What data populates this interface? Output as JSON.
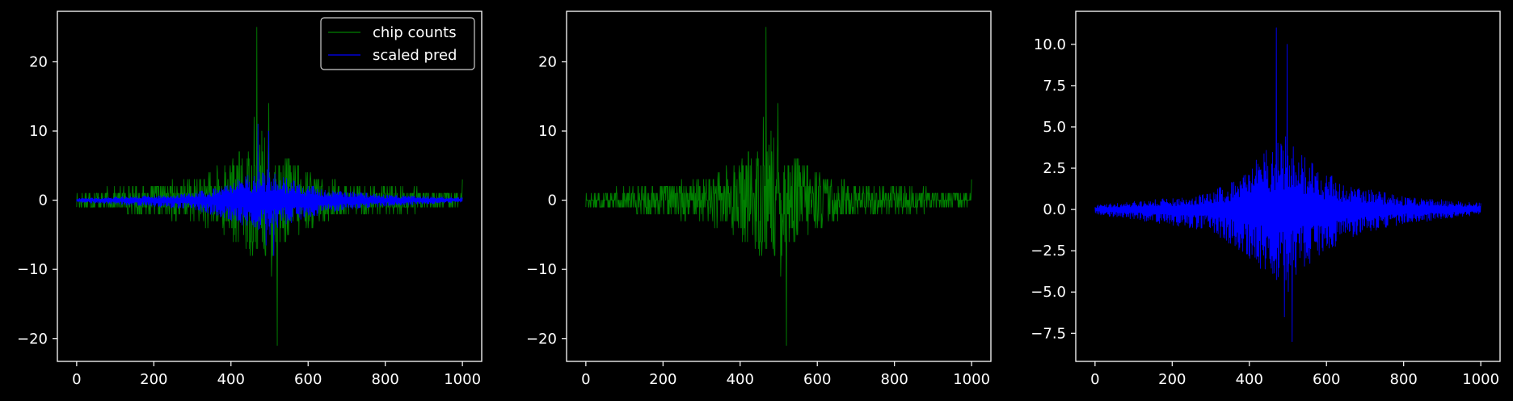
{
  "colors": {
    "background": "#000000",
    "axes": "#ffffff",
    "text": "#ffffff",
    "counts": "#008000",
    "pred": "#0000ff"
  },
  "chart_data": [
    {
      "type": "line",
      "title": "",
      "xlabel": "",
      "ylabel": "",
      "xlim": [
        -50,
        1050
      ],
      "ylim": [
        -23.3,
        27.3
      ],
      "xticks": [
        0,
        200,
        400,
        600,
        800,
        1000
      ],
      "yticks": [
        -20,
        -10,
        0,
        10,
        20
      ],
      "xtick_labels": [
        "0",
        "200",
        "400",
        "600",
        "800",
        "1000"
      ],
      "ytick_labels": [
        "−20",
        "−10",
        "0",
        "10",
        "20"
      ],
      "grid": false,
      "legend": {
        "position": "top-right",
        "entries": [
          "chip counts",
          "scaled pred"
        ]
      },
      "series": [
        {
          "name": "chip counts",
          "color": "#008000",
          "kind": "signed-counts",
          "x_range": [
            0,
            1000
          ],
          "peaks": [
            {
              "x": 467,
              "y": 25
            },
            {
              "x": 498,
              "y": 14
            },
            {
              "x": 520,
              "y": -21
            },
            {
              "x": 505,
              "y": -11
            },
            {
              "x": 460,
              "y": 12
            },
            {
              "x": 480,
              "y": 10
            }
          ],
          "envelope": [
            [
              0,
              1
            ],
            [
              150,
              2
            ],
            [
              300,
              3
            ],
            [
              400,
              6
            ],
            [
              450,
              8
            ],
            [
              500,
              9
            ],
            [
              550,
              6
            ],
            [
              650,
              3
            ],
            [
              800,
              2
            ],
            [
              1000,
              1
            ]
          ],
          "end_value": 3
        },
        {
          "name": "scaled pred",
          "color": "#0000ff",
          "kind": "two-sided-prediction",
          "x_range": [
            0,
            1000
          ],
          "upper_peaks": [
            {
              "x": 470,
              "y": 11
            },
            {
              "x": 498,
              "y": 10
            }
          ],
          "lower_peaks": [
            {
              "x": 510,
              "y": -8
            },
            {
              "x": 490,
              "y": -6.5
            }
          ],
          "upper_envelope": [
            [
              0,
              0.3
            ],
            [
              150,
              0.6
            ],
            [
              300,
              1
            ],
            [
              400,
              2.5
            ],
            [
              450,
              4
            ],
            [
              500,
              4.5
            ],
            [
              550,
              3
            ],
            [
              650,
              1.5
            ],
            [
              800,
              0.8
            ],
            [
              1000,
              0.4
            ]
          ],
          "lower_envelope": [
            [
              0,
              -0.3
            ],
            [
              150,
              -0.8
            ],
            [
              300,
              -1.3
            ],
            [
              400,
              -3
            ],
            [
              450,
              -4
            ],
            [
              500,
              -5
            ],
            [
              550,
              -3.5
            ],
            [
              650,
              -1.8
            ],
            [
              800,
              -0.9
            ],
            [
              1000,
              -0.3
            ]
          ]
        }
      ]
    },
    {
      "type": "line",
      "title": "",
      "xlabel": "",
      "ylabel": "",
      "xlim": [
        -50,
        1050
      ],
      "ylim": [
        -23.3,
        27.3
      ],
      "xticks": [
        0,
        200,
        400,
        600,
        800,
        1000
      ],
      "yticks": [
        -20,
        -10,
        0,
        10,
        20
      ],
      "xtick_labels": [
        "0",
        "200",
        "400",
        "600",
        "800",
        "1000"
      ],
      "ytick_labels": [
        "−20",
        "−10",
        "0",
        "10",
        "20"
      ],
      "grid": false,
      "series": [
        {
          "name": "chip counts",
          "color": "#008000",
          "kind": "signed-counts",
          "x_range": [
            0,
            1000
          ],
          "peaks": [
            {
              "x": 467,
              "y": 25
            },
            {
              "x": 498,
              "y": 14
            },
            {
              "x": 520,
              "y": -21
            },
            {
              "x": 505,
              "y": -11
            },
            {
              "x": 460,
              "y": 12
            },
            {
              "x": 480,
              "y": 10
            }
          ],
          "envelope": [
            [
              0,
              1
            ],
            [
              150,
              2
            ],
            [
              300,
              3
            ],
            [
              400,
              6
            ],
            [
              450,
              8
            ],
            [
              500,
              9
            ],
            [
              550,
              6
            ],
            [
              650,
              3
            ],
            [
              800,
              2
            ],
            [
              1000,
              1
            ]
          ],
          "end_value": 3
        }
      ]
    },
    {
      "type": "line",
      "title": "",
      "xlabel": "",
      "ylabel": "",
      "xlim": [
        -50,
        1050
      ],
      "ylim": [
        -9.2,
        12.0
      ],
      "xticks": [
        0,
        200,
        400,
        600,
        800,
        1000
      ],
      "yticks": [
        -7.5,
        -5,
        -2.5,
        0,
        2.5,
        5,
        7.5,
        10
      ],
      "xtick_labels": [
        "0",
        "200",
        "400",
        "600",
        "800",
        "1000"
      ],
      "ytick_labels": [
        "−7.5",
        "−5.0",
        "−2.5",
        "0.0",
        "2.5",
        "5.0",
        "7.5",
        "10.0"
      ],
      "grid": false,
      "series": [
        {
          "name": "scaled pred",
          "color": "#0000ff",
          "kind": "two-sided-prediction",
          "x_range": [
            0,
            1000
          ],
          "upper_peaks": [
            {
              "x": 470,
              "y": 11
            },
            {
              "x": 498,
              "y": 10
            }
          ],
          "lower_peaks": [
            {
              "x": 510,
              "y": -8
            },
            {
              "x": 490,
              "y": -6.5
            }
          ],
          "upper_envelope": [
            [
              0,
              0.3
            ],
            [
              150,
              0.6
            ],
            [
              300,
              1
            ],
            [
              400,
              2.5
            ],
            [
              450,
              4
            ],
            [
              500,
              4.5
            ],
            [
              550,
              3
            ],
            [
              650,
              1.5
            ],
            [
              800,
              0.8
            ],
            [
              1000,
              0.4
            ]
          ],
          "lower_envelope": [
            [
              0,
              -0.3
            ],
            [
              150,
              -0.8
            ],
            [
              300,
              -1.3
            ],
            [
              400,
              -3
            ],
            [
              450,
              -4
            ],
            [
              500,
              -5
            ],
            [
              550,
              -3.5
            ],
            [
              650,
              -1.8
            ],
            [
              800,
              -0.9
            ],
            [
              1000,
              -0.3
            ]
          ]
        }
      ]
    }
  ]
}
